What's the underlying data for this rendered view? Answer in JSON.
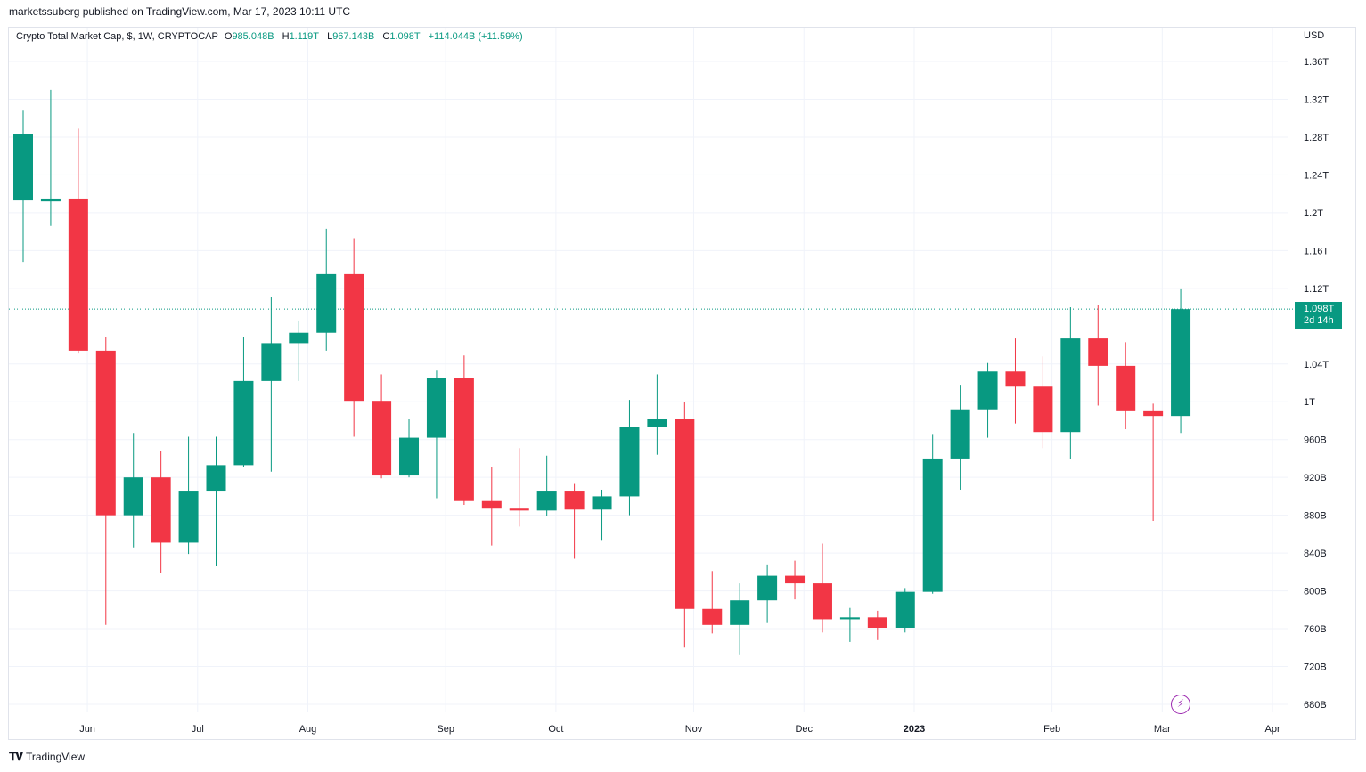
{
  "publisher_line": "marketssuberg published on TradingView.com, Mar 17, 2023 10:11 UTC",
  "legend": {
    "title": "Crypto Total Market Cap, $, 1W, CRYPTOCAP",
    "o_label": "O",
    "o_value": "985.048B",
    "h_label": "H",
    "h_value": "1.119T",
    "l_label": "L",
    "l_value": "967.143B",
    "c_label": "C",
    "c_value": "1.098T",
    "change": "+114.044B (+11.59%)"
  },
  "currency": "USD",
  "last_price": {
    "value": "1.098T",
    "countdown": "2d 14h"
  },
  "brand": "TradingView",
  "colors": {
    "up": "#089981",
    "down": "#f23645",
    "grid": "#f0f3fa",
    "text": "#131722"
  },
  "icons": {
    "logo": "tradingview-logo-icon",
    "flash": "lightning-icon"
  },
  "chart_data": {
    "type": "candlestick",
    "title": "Crypto Total Market Cap, $, 1W, CRYPTOCAP",
    "interval": "1W",
    "ylim": [
      670,
      1380
    ],
    "y_unit": "billion USD",
    "y_ticks": [
      {
        "value": 1360,
        "label": "1.36T"
      },
      {
        "value": 1320,
        "label": "1.32T"
      },
      {
        "value": 1280,
        "label": "1.28T"
      },
      {
        "value": 1240,
        "label": "1.24T"
      },
      {
        "value": 1200,
        "label": "1.2T"
      },
      {
        "value": 1160,
        "label": "1.16T"
      },
      {
        "value": 1120,
        "label": "1.12T"
      },
      {
        "value": 1040,
        "label": "1.04T"
      },
      {
        "value": 1000,
        "label": "1T"
      },
      {
        "value": 960,
        "label": "960B"
      },
      {
        "value": 920,
        "label": "920B"
      },
      {
        "value": 880,
        "label": "880B"
      },
      {
        "value": 840,
        "label": "840B"
      },
      {
        "value": 800,
        "label": "800B"
      },
      {
        "value": 760,
        "label": "760B"
      },
      {
        "value": 720,
        "label": "720B"
      },
      {
        "value": 680,
        "label": "680B"
      }
    ],
    "x_ticks": [
      {
        "week": 2.33,
        "label": "Jun",
        "bold": false
      },
      {
        "week": 6.33,
        "label": "Jul",
        "bold": false
      },
      {
        "week": 10.33,
        "label": "Aug",
        "bold": false
      },
      {
        "week": 15.33,
        "label": "Sep",
        "bold": false
      },
      {
        "week": 19.33,
        "label": "Oct",
        "bold": false
      },
      {
        "week": 24.33,
        "label": "Nov",
        "bold": false
      },
      {
        "week": 28.33,
        "label": "Dec",
        "bold": false
      },
      {
        "week": 32.33,
        "label": "2023",
        "bold": true
      },
      {
        "week": 37.33,
        "label": "Feb",
        "bold": false
      },
      {
        "week": 41.33,
        "label": "Mar",
        "bold": false
      },
      {
        "week": 45.33,
        "label": "Apr",
        "bold": false
      }
    ],
    "last_price": 1098,
    "candles": [
      {
        "o": 1213,
        "h": 1308,
        "l": 1148,
        "c": 1283
      },
      {
        "o": 1212,
        "h": 1330,
        "l": 1186,
        "c": 1215
      },
      {
        "o": 1215,
        "h": 1289,
        "l": 1051,
        "c": 1054
      },
      {
        "o": 1054,
        "h": 1068,
        "l": 764,
        "c": 880
      },
      {
        "o": 880,
        "h": 967,
        "l": 846,
        "c": 920
      },
      {
        "o": 920,
        "h": 948,
        "l": 819,
        "c": 851
      },
      {
        "o": 851,
        "h": 963,
        "l": 839,
        "c": 906
      },
      {
        "o": 906,
        "h": 963,
        "l": 826,
        "c": 933
      },
      {
        "o": 933,
        "h": 1068,
        "l": 931,
        "c": 1022
      },
      {
        "o": 1022,
        "h": 1111,
        "l": 926,
        "c": 1062
      },
      {
        "o": 1062,
        "h": 1086,
        "l": 1022,
        "c": 1073
      },
      {
        "o": 1073,
        "h": 1183,
        "l": 1054,
        "c": 1135
      },
      {
        "o": 1135,
        "h": 1173,
        "l": 963,
        "c": 1001
      },
      {
        "o": 1001,
        "h": 1029,
        "l": 919,
        "c": 922
      },
      {
        "o": 922,
        "h": 982,
        "l": 920,
        "c": 962
      },
      {
        "o": 962,
        "h": 1033,
        "l": 898,
        "c": 1025
      },
      {
        "o": 1025,
        "h": 1049,
        "l": 891,
        "c": 895
      },
      {
        "o": 895,
        "h": 931,
        "l": 848,
        "c": 887
      },
      {
        "o": 887,
        "h": 951,
        "l": 868,
        "c": 885
      },
      {
        "o": 885,
        "h": 943,
        "l": 879,
        "c": 906
      },
      {
        "o": 906,
        "h": 914,
        "l": 834,
        "c": 886
      },
      {
        "o": 886,
        "h": 907,
        "l": 853,
        "c": 900
      },
      {
        "o": 900,
        "h": 1002,
        "l": 880,
        "c": 973
      },
      {
        "o": 973,
        "h": 1029,
        "l": 944,
        "c": 982
      },
      {
        "o": 982,
        "h": 1000,
        "l": 740,
        "c": 781
      },
      {
        "o": 781,
        "h": 821,
        "l": 755,
        "c": 764
      },
      {
        "o": 764,
        "h": 808,
        "l": 732,
        "c": 790
      },
      {
        "o": 790,
        "h": 828,
        "l": 766,
        "c": 816
      },
      {
        "o": 816,
        "h": 832,
        "l": 791,
        "c": 808
      },
      {
        "o": 808,
        "h": 850,
        "l": 756,
        "c": 770
      },
      {
        "o": 770,
        "h": 782,
        "l": 746,
        "c": 772
      },
      {
        "o": 772,
        "h": 779,
        "l": 748,
        "c": 761
      },
      {
        "o": 761,
        "h": 803,
        "l": 756,
        "c": 799
      },
      {
        "o": 799,
        "h": 966,
        "l": 797,
        "c": 940
      },
      {
        "o": 940,
        "h": 1018,
        "l": 907,
        "c": 992
      },
      {
        "o": 992,
        "h": 1041,
        "l": 962,
        "c": 1032
      },
      {
        "o": 1032,
        "h": 1067,
        "l": 977,
        "c": 1016
      },
      {
        "o": 1016,
        "h": 1048,
        "l": 951,
        "c": 968
      },
      {
        "o": 968,
        "h": 1100,
        "l": 939,
        "c": 1067
      },
      {
        "o": 1067,
        "h": 1102,
        "l": 996,
        "c": 1038
      },
      {
        "o": 1038,
        "h": 1063,
        "l": 971,
        "c": 990
      },
      {
        "o": 990,
        "h": 998,
        "l": 874,
        "c": 985
      },
      {
        "o": 985,
        "h": 1119,
        "l": 967,
        "c": 1098
      }
    ]
  }
}
